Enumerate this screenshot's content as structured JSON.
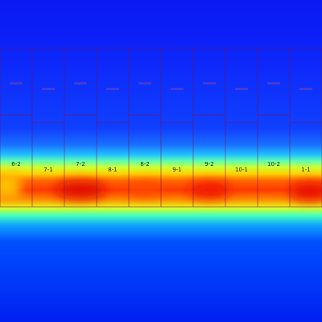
{
  "cells": [
    {
      "label": "6-2"
    },
    {
      "label": "7-1"
    },
    {
      "label": "7-2"
    },
    {
      "label": "8-1"
    },
    {
      "label": "8-2"
    },
    {
      "label": "9-1"
    },
    {
      "label": "9-2"
    },
    {
      "label": "10-1"
    },
    {
      "label": "10-2"
    },
    {
      "label": "1-1"
    }
  ]
}
